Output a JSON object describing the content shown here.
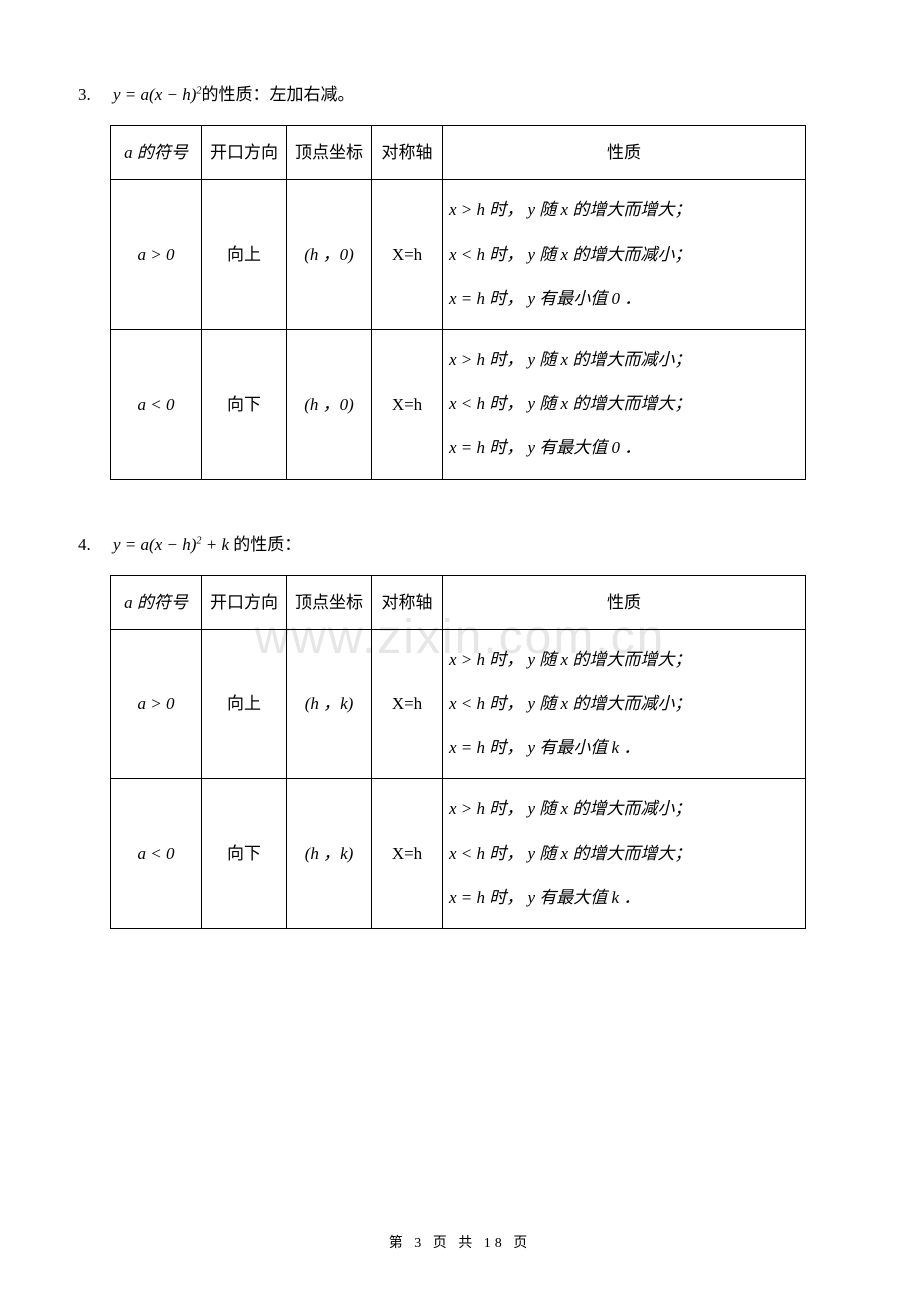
{
  "watermark": "www.zixin.com.cn",
  "footer": "第 3 页 共 18 页",
  "section3": {
    "num": "3.",
    "formula_pre": "y = a",
    "formula_paren": "(x − h)",
    "formula_exp": "2",
    "intro_tail": "的性质：左加右减。",
    "headers": {
      "a": "a 的符号",
      "dir": "开口方向",
      "vertex": "顶点坐标",
      "axis": "对称轴",
      "prop": "性质"
    },
    "rows": [
      {
        "a": "a > 0",
        "dir": "向上",
        "vertex": "(h ，0)",
        "axis": "X=h",
        "prop1": "x > h 时， y 随 x 的增大而增大；",
        "prop2": "x < h 时， y 随 x 的增大而减小；",
        "prop3": "x = h 时， y 有最小值 0 ．"
      },
      {
        "a": "a < 0",
        "dir": "向下",
        "vertex": "(h ，0)",
        "axis": "X=h",
        "prop1": "x > h 时， y 随 x 的增大而减小；",
        "prop2": "x < h 时， y 随 x 的增大而增大；",
        "prop3": "x = h 时， y 有最大值 0 ．"
      }
    ]
  },
  "section4": {
    "num": "4.",
    "formula_pre": "y = a",
    "formula_paren": "(x − h)",
    "formula_exp": "2",
    "formula_tail": " + k",
    "intro_tail": " 的性质：",
    "headers": {
      "a": "a 的符号",
      "dir": "开口方向",
      "vertex": "顶点坐标",
      "axis": "对称轴",
      "prop": "性质"
    },
    "rows": [
      {
        "a": "a > 0",
        "dir": "向上",
        "vertex": "(h ，k)",
        "axis": "X=h",
        "prop1": "x > h 时， y 随 x 的增大而增大；",
        "prop2": "x < h 时， y 随 x 的增大而减小；",
        "prop3": "x = h 时， y 有最小值 k ．"
      },
      {
        "a": "a < 0",
        "dir": "向下",
        "vertex": "(h ，k)",
        "axis": "X=h",
        "prop1": "x > h 时， y 随 x 的增大而减小；",
        "prop2": "x < h 时， y 随 x 的增大而增大；",
        "prop3": "x = h 时， y 有最大值 k ．"
      }
    ]
  }
}
